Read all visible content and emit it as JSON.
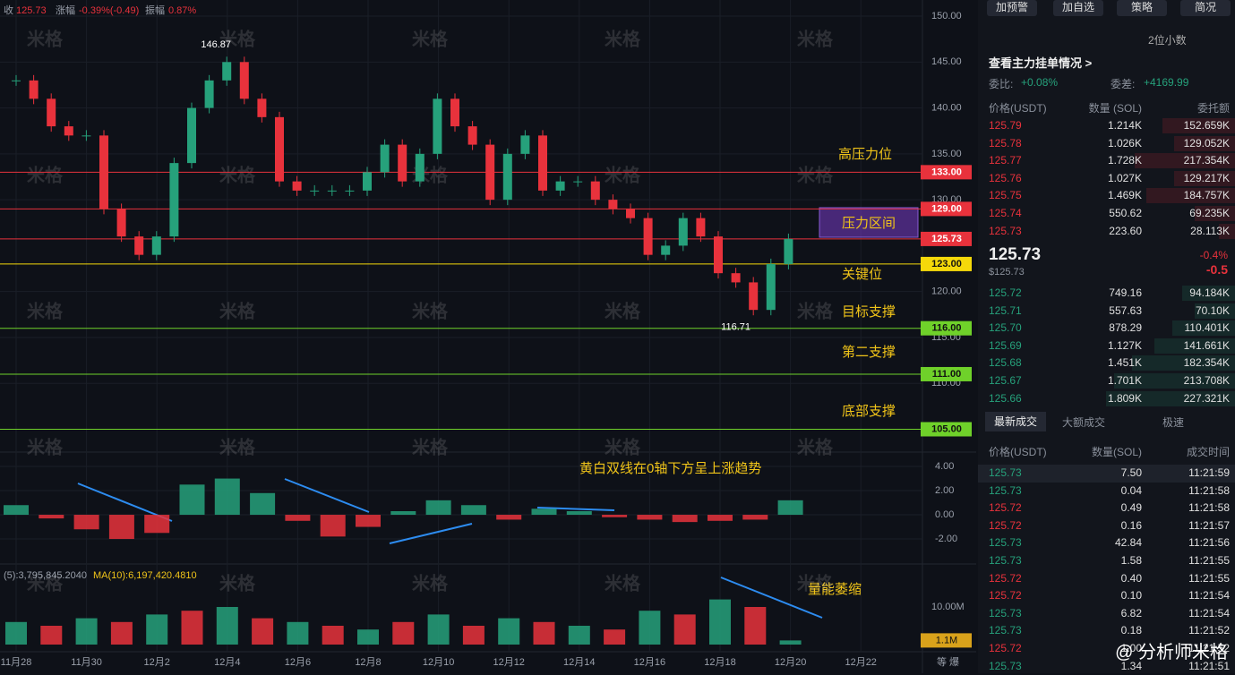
{
  "header": {
    "close_label": "收",
    "close": "125.73",
    "change_label": "涨幅",
    "change": "-0.39%(-0.49)",
    "amp_label": "振幅",
    "amp": "0.87%"
  },
  "watermark": "米格",
  "chart_data": {
    "type": "candlestick",
    "closes": [
      143,
      141,
      138,
      137,
      137,
      129,
      126,
      124,
      126,
      134,
      140,
      143,
      145,
      141,
      139,
      132,
      131,
      131,
      131,
      131,
      133,
      136,
      132,
      135,
      141,
      138,
      136,
      130,
      135,
      137,
      131,
      132,
      132,
      130,
      129,
      128,
      124,
      125,
      128,
      126,
      122,
      121,
      118,
      123,
      125.73
    ],
    "up_color": "#26a17b",
    "down_color": "#e8323c",
    "ylim": [
      103,
      151.76
    ],
    "yticks": [
      {
        "value": 150,
        "label": "150.00"
      },
      {
        "value": 145,
        "label": "145.00"
      },
      {
        "value": 140,
        "label": "140.00"
      },
      {
        "value": 135,
        "label": "135.00"
      },
      {
        "value": 130,
        "label": "130.00"
      },
      {
        "value": 120,
        "label": "120.00"
      },
      {
        "value": 115,
        "label": "115.00"
      },
      {
        "value": 110,
        "label": "110.00"
      }
    ],
    "dates": [
      "11月28",
      "11月30",
      "12月2",
      "12月4",
      "12月6",
      "12月8",
      "12月10",
      "12月12",
      "12月14",
      "12月16",
      "12月18",
      "12月20",
      "12月22"
    ],
    "levels": [
      {
        "value": 133,
        "label": "133.00",
        "color": "#e8323c"
      },
      {
        "value": 129,
        "label": "129.00",
        "color": "#e8323c"
      },
      {
        "value": 125.73,
        "label": "125.73",
        "color": "#e8323c"
      },
      {
        "value": 123,
        "label": "123.00",
        "color": "#f5d90a"
      },
      {
        "value": 116,
        "label": "116.00",
        "color": "#6fd12a"
      },
      {
        "value": 111,
        "label": "111.00",
        "color": "#6fd12a"
      },
      {
        "value": 105,
        "label": "105.00",
        "color": "#6fd12a"
      }
    ],
    "high": 146.87,
    "low": 116.71,
    "annotations": [
      "高压力位",
      "压力区间",
      "关键位",
      "目标支撑",
      "第二支撑",
      "底部支撑",
      "黄白双线在0轴下方呈上涨趋势",
      "量能萎缩"
    ],
    "macd": {
      "ylim": [
        -2.96,
        5.19
      ],
      "yticks": [
        {
          "value": 4,
          "label": "4.00"
        },
        {
          "value": 2,
          "label": "2.00"
        },
        {
          "value": 0,
          "label": "0.00"
        },
        {
          "value": -2,
          "label": "-2.00"
        }
      ],
      "values": [
        0.8,
        -0.3,
        -1.2,
        -2.0,
        -1.5,
        2.5,
        3.0,
        1.8,
        -0.5,
        -1.8,
        -1.0,
        0.3,
        1.2,
        0.8,
        -0.4,
        0.5,
        0.3,
        -0.2,
        -0.4,
        -0.6,
        -0.5,
        -0.4,
        1.2
      ]
    },
    "volume": {
      "ma_text": "(5):3,795,845.2040",
      "ma10_text": "MA(10):6,197,420.4810",
      "ylim": [
        0,
        19.05
      ],
      "yticks": [
        {
          "value": 10,
          "label": "10.00M"
        }
      ],
      "current": {
        "value": 1.1,
        "label": "1.1M"
      },
      "values": [
        6,
        5,
        7,
        6,
        8,
        9,
        10,
        7,
        6,
        5,
        4,
        6,
        8,
        5,
        7,
        6,
        5,
        4,
        9,
        8,
        12,
        10,
        1.1
      ]
    },
    "footer": "等 爆"
  },
  "panel": {
    "buttons": [
      "加预警",
      "加自选",
      "策略",
      "简况"
    ],
    "decimals": "2位小数",
    "book_link": "查看主力挂单情况 >",
    "ratio_label": "委比:",
    "ratio": "+0.08%",
    "diff_label": "委差:",
    "diff": "+4169.99",
    "book_headers": [
      "价格(USDT)",
      "数量 (SOL)",
      "委托额"
    ],
    "asks": [
      [
        "125.79",
        "1.214K",
        "152.659K"
      ],
      [
        "125.78",
        "1.026K",
        "129.052K"
      ],
      [
        "125.77",
        "1.728K",
        "217.354K"
      ],
      [
        "125.76",
        "1.027K",
        "129.217K"
      ],
      [
        "125.75",
        "1.469K",
        "184.757K"
      ],
      [
        "125.74",
        "550.62",
        "69.235K"
      ],
      [
        "125.73",
        "223.60",
        "28.113K"
      ]
    ],
    "last": "125.73",
    "last_usd": "$125.73",
    "last_pct": "-0.4%",
    "last_chg": "-0.5",
    "bids": [
      [
        "125.72",
        "749.16",
        "94.184K"
      ],
      [
        "125.71",
        "557.63",
        "70.10K"
      ],
      [
        "125.70",
        "878.29",
        "110.401K"
      ],
      [
        "125.69",
        "1.127K",
        "141.661K"
      ],
      [
        "125.68",
        "1.451K",
        "182.354K"
      ],
      [
        "125.67",
        "1.701K",
        "213.708K"
      ],
      [
        "125.66",
        "1.809K",
        "227.321K"
      ]
    ],
    "tabs": [
      "最新成交",
      "大额成交",
      "极速"
    ],
    "trade_headers": [
      "价格(USDT)",
      "数量(SOL)",
      "成交时间"
    ],
    "trades": [
      {
        "price": "125.73",
        "qty": "7.50",
        "time": "11:21:59",
        "color": "#26a17b"
      },
      {
        "price": "125.73",
        "qty": "0.04",
        "time": "11:21:58",
        "color": "#26a17b"
      },
      {
        "price": "125.72",
        "qty": "0.49",
        "time": "11:21:58",
        "color": "#e8323c"
      },
      {
        "price": "125.72",
        "qty": "0.16",
        "time": "11:21:57",
        "color": "#e8323c"
      },
      {
        "price": "125.73",
        "qty": "42.84",
        "time": "11:21:56",
        "color": "#26a17b"
      },
      {
        "price": "125.73",
        "qty": "1.58",
        "time": "11:21:55",
        "color": "#26a17b"
      },
      {
        "price": "125.72",
        "qty": "0.40",
        "time": "11:21:55",
        "color": "#e8323c"
      },
      {
        "price": "125.72",
        "qty": "0.10",
        "time": "11:21:54",
        "color": "#e8323c"
      },
      {
        "price": "125.73",
        "qty": "6.82",
        "time": "11:21:54",
        "color": "#26a17b"
      },
      {
        "price": "125.73",
        "qty": "0.18",
        "time": "11:21:52",
        "color": "#26a17b"
      },
      {
        "price": "125.72",
        "qty": "1.00",
        "time": "11:21:52",
        "color": "#e8323c"
      },
      {
        "price": "125.73",
        "qty": "1.34",
        "time": "11:21:51",
        "color": "#26a17b"
      }
    ],
    "brand": "@ 分析师米格"
  }
}
